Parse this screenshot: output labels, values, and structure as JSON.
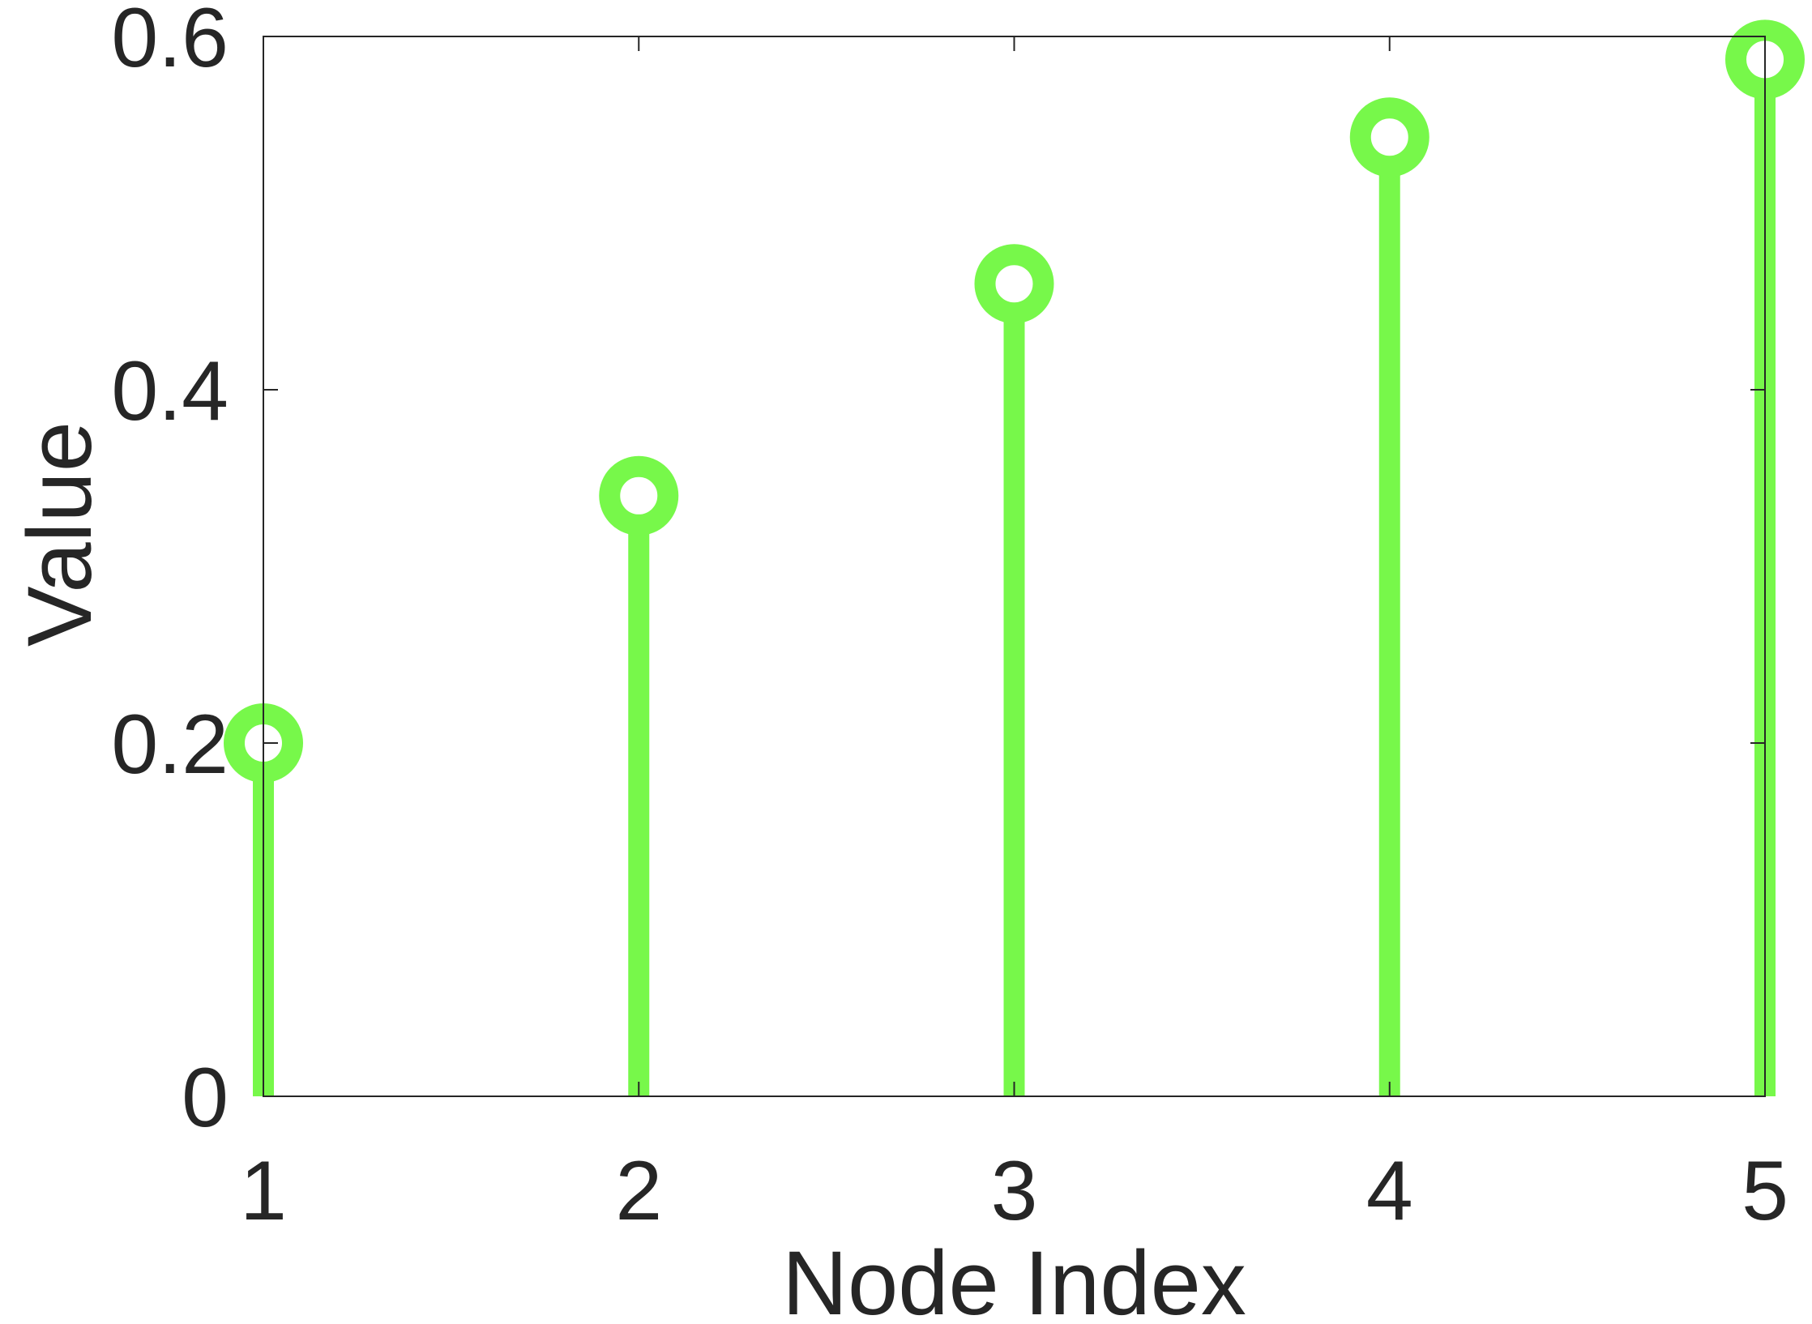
{
  "chart_data": {
    "type": "stem",
    "title": "",
    "xlabel": "Node Index",
    "ylabel": "Value",
    "x": [
      1,
      2,
      3,
      4,
      5
    ],
    "values": [
      0.2,
      0.34,
      0.46,
      0.543,
      0.587
    ],
    "xlim": [
      1,
      5
    ],
    "ylim": [
      0,
      0.6
    ],
    "x_ticks": [
      1,
      2,
      3,
      4,
      5
    ],
    "x_tick_labels": [
      "1",
      "2",
      "3",
      "4",
      "5"
    ],
    "y_ticks": [
      0,
      0.2,
      0.4,
      0.6
    ],
    "y_tick_labels": [
      "0",
      "0.2",
      "0.4",
      "0.6"
    ],
    "grid": false,
    "legend": "none",
    "marker": "circle",
    "series_color": "#77f84a",
    "axis_color": "#262626"
  }
}
